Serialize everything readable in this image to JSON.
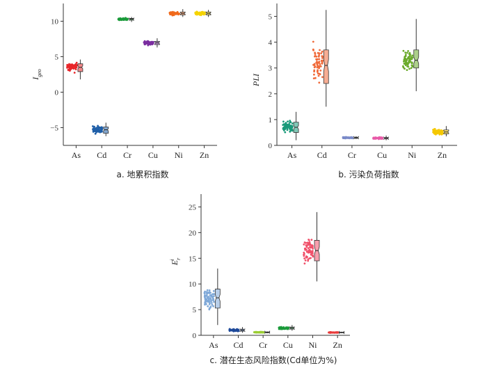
{
  "chart_data": [
    {
      "panel": "a",
      "type": "scatter",
      "caption": "a. 地累积指数",
      "ylabel": "I",
      "ylabel_sub": "geo",
      "ylim": [
        -7.5,
        12.5
      ],
      "yticks": [
        -5,
        0,
        5,
        10
      ],
      "ytick_labels": [
        "−5",
        "0",
        "5",
        "10"
      ],
      "grid": false,
      "categories": [
        "As",
        "Cd",
        "Cr",
        "Cu",
        "Ni",
        "Zn"
      ],
      "series": [
        {
          "category": "As",
          "color": "#e8262a",
          "min": 1.8,
          "q1": 2.9,
          "median": 3.5,
          "q3": 4.0,
          "max": 4.6
        },
        {
          "category": "Cd",
          "color": "#1f5fa8",
          "min": -6.2,
          "q1": -5.8,
          "median": -5.3,
          "q3": -4.9,
          "max": -4.3
        },
        {
          "category": "Cr",
          "color": "#1a9a3a",
          "min": 9.9,
          "q1": 10.15,
          "median": 10.3,
          "q3": 10.4,
          "max": 10.6
        },
        {
          "category": "Cu",
          "color": "#7b2fa0",
          "min": 6.3,
          "q1": 6.7,
          "median": 6.95,
          "q3": 7.15,
          "max": 7.6
        },
        {
          "category": "Ni",
          "color": "#f06a1c",
          "min": 10.6,
          "q1": 10.9,
          "median": 11.1,
          "q3": 11.3,
          "max": 11.7
        },
        {
          "category": "Zn",
          "color": "#f5d300",
          "min": 10.6,
          "q1": 10.9,
          "median": 11.1,
          "q3": 11.3,
          "max": 11.6
        }
      ]
    },
    {
      "panel": "b",
      "type": "scatter",
      "caption": "b. 污染负荷指数",
      "ylabel": "PLI",
      "ylim": [
        0,
        5.5
      ],
      "yticks": [
        0,
        1,
        2,
        3,
        4,
        5
      ],
      "ytick_labels": [
        "0",
        "1",
        "2",
        "3",
        "4",
        "5"
      ],
      "grid": false,
      "categories": [
        "As",
        "Cd",
        "Cr",
        "Cu",
        "Ni",
        "Zn"
      ],
      "series": [
        {
          "category": "As",
          "color": "#1a9a7a",
          "min": 0.2,
          "q1": 0.5,
          "median": 0.7,
          "q3": 0.9,
          "max": 1.3
        },
        {
          "category": "Cd",
          "color": "#f06a3a",
          "min": 1.5,
          "q1": 2.4,
          "median": 3.1,
          "q3": 3.7,
          "max": 5.25
        },
        {
          "category": "Cr",
          "color": "#7a8ac8",
          "min": 0.25,
          "q1": 0.27,
          "median": 0.3,
          "q3": 0.32,
          "max": 0.35
        },
        {
          "category": "Cu",
          "color": "#e85aa8",
          "min": 0.2,
          "q1": 0.25,
          "median": 0.28,
          "q3": 0.31,
          "max": 0.38
        },
        {
          "category": "Ni",
          "color": "#6aaa2a",
          "min": 2.1,
          "q1": 3.0,
          "median": 3.3,
          "q3": 3.7,
          "max": 4.9
        },
        {
          "category": "Zn",
          "color": "#f5c800",
          "min": 0.35,
          "q1": 0.45,
          "median": 0.52,
          "q3": 0.6,
          "max": 0.75
        }
      ]
    },
    {
      "panel": "c",
      "type": "scatter",
      "caption": "c. 潜在生态风险指数(Cd单位为%)",
      "ylabel": "E",
      "ylabel_sub": "r",
      "ylabel_sup": "i",
      "ylim": [
        0,
        27.5
      ],
      "yticks": [
        0,
        5,
        10,
        15,
        20,
        25
      ],
      "ytick_labels": [
        "0",
        "5",
        "10",
        "15",
        "20",
        "25"
      ],
      "grid": false,
      "categories": [
        "As",
        "Cd",
        "Cr",
        "Cu",
        "Ni",
        "Zn"
      ],
      "series": [
        {
          "category": "As",
          "color": "#7ea8d8",
          "min": 2.0,
          "q1": 5.3,
          "median": 7.3,
          "q3": 9.0,
          "max": 13.0
        },
        {
          "category": "Cd",
          "color": "#1f4a9a",
          "min": 0.5,
          "q1": 0.8,
          "median": 1.0,
          "q3": 1.2,
          "max": 1.6
        },
        {
          "category": "Cr",
          "color": "#9acd32",
          "min": 0.4,
          "q1": 0.5,
          "median": 0.6,
          "q3": 0.65,
          "max": 0.75
        },
        {
          "category": "Cu",
          "color": "#1a9a3a",
          "min": 0.9,
          "q1": 1.2,
          "median": 1.4,
          "q3": 1.6,
          "max": 2.0
        },
        {
          "category": "Ni",
          "color": "#f0506a",
          "min": 10.5,
          "q1": 14.5,
          "median": 16.5,
          "q3": 18.5,
          "max": 24.0
        },
        {
          "category": "Zn",
          "color": "#e83a3a",
          "min": 0.4,
          "q1": 0.5,
          "median": 0.55,
          "q3": 0.6,
          "max": 0.7
        }
      ]
    }
  ]
}
